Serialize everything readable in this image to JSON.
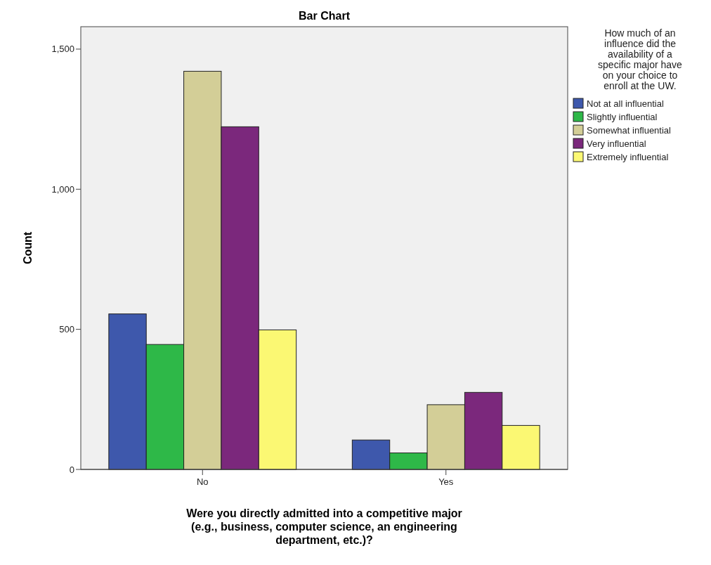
{
  "chart_data": {
    "type": "bar",
    "title": "Bar Chart",
    "xlabel": "Were you directly admitted into a competitive major (e.g., business, computer science, an engineering department, etc.)?",
    "ylabel": "Count",
    "legend_title": "How much of an influence did the availability of a specific major have on your choice to enroll at the UW.",
    "categories": [
      "No",
      "Yes"
    ],
    "series": [
      {
        "name": "Not at all influential",
        "color": "#3e58ac",
        "values": [
          555,
          105
        ]
      },
      {
        "name": "Slightly influential",
        "color": "#2eb848",
        "values": [
          446,
          59
        ]
      },
      {
        "name": "Somewhat influential",
        "color": "#d3ce97",
        "values": [
          1421,
          231
        ]
      },
      {
        "name": "Very influential",
        "color": "#7b287c",
        "values": [
          1223,
          275
        ]
      },
      {
        "name": "Extremely influential",
        "color": "#fbf873",
        "values": [
          498,
          157
        ]
      }
    ],
    "ylim": [
      0,
      1580
    ],
    "yticks": [
      0,
      {
        "value": 500,
        "label": "500"
      },
      {
        "value": 1000,
        "label": "1,000"
      },
      {
        "value": 1500,
        "label": "1,500"
      }
    ],
    "grid": false,
    "legend": "right"
  }
}
